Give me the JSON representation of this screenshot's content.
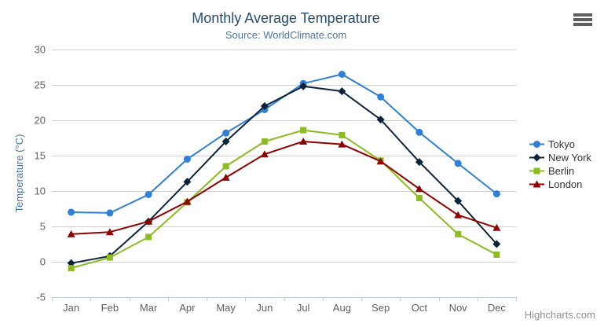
{
  "credits": "Highcharts.com",
  "export_menu_label": "Chart context menu",
  "chart_data": {
    "type": "line",
    "title": "Monthly Average Temperature",
    "subtitle": "Source: WorldClimate.com",
    "xlabel": "",
    "ylabel": "Temperature (°C)",
    "categories": [
      "Jan",
      "Feb",
      "Mar",
      "Apr",
      "May",
      "Jun",
      "Jul",
      "Aug",
      "Sep",
      "Oct",
      "Nov",
      "Dec"
    ],
    "ylim": [
      -5,
      30
    ],
    "ytick_step": 5,
    "yticks": [
      -5,
      0,
      5,
      10,
      15,
      20,
      25,
      30
    ],
    "grid": true,
    "legend_position": "right-middle",
    "axis_colors": {
      "grid_line": "#d0d0d0",
      "axis_line": "#c0d0e0",
      "tick_mark": "#c0d0e0",
      "tick_label": "#606060",
      "axis_title": "#4d759e"
    },
    "series": [
      {
        "name": "Tokyo",
        "color": "#2f7ed8",
        "marker": "circle",
        "values": [
          7.0,
          6.9,
          9.5,
          14.5,
          18.2,
          21.5,
          25.2,
          26.5,
          23.3,
          18.3,
          13.9,
          9.6
        ]
      },
      {
        "name": "New York",
        "color": "#0d233a",
        "marker": "diamond",
        "values": [
          -0.2,
          0.8,
          5.7,
          11.3,
          17.0,
          22.0,
          24.8,
          24.1,
          20.1,
          14.1,
          8.6,
          2.5
        ]
      },
      {
        "name": "Berlin",
        "color": "#8bbc21",
        "marker": "square",
        "values": [
          -0.9,
          0.6,
          3.5,
          8.4,
          13.5,
          17.0,
          18.6,
          17.9,
          14.3,
          9.0,
          3.9,
          1.0
        ]
      },
      {
        "name": "London",
        "color": "#910000",
        "marker": "triangle",
        "values": [
          3.9,
          4.2,
          5.7,
          8.5,
          11.9,
          15.2,
          17.0,
          16.6,
          14.2,
          10.3,
          6.6,
          4.8
        ]
      }
    ]
  }
}
